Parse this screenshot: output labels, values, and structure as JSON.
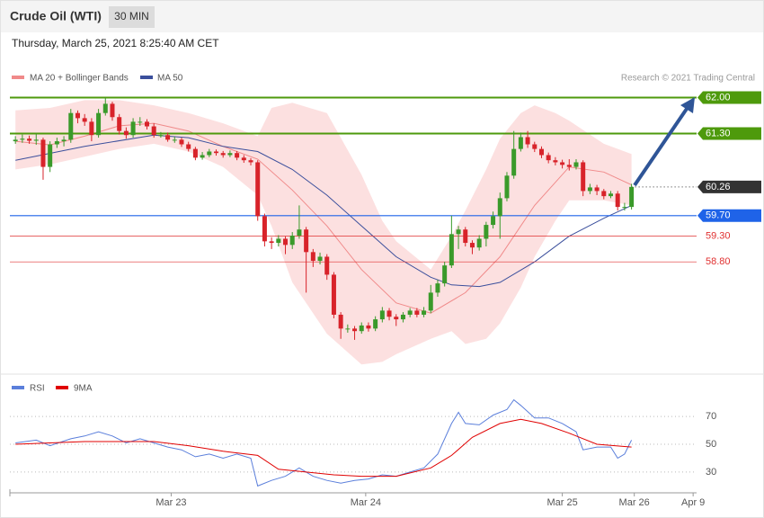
{
  "header": {
    "title": "Crude Oil (WTI)",
    "interval": "30 MIN",
    "timestamp": "Thursday, March 25, 2021 8:25:40 AM CET",
    "credit": "Research © 2021 Trading Central"
  },
  "chart_data": [
    {
      "type": "candlestick",
      "up_color": "#3a9a2a",
      "down_color": "#d8232a",
      "xlim": [
        -0.8,
        98.4
      ],
      "ylim": [
        56.7,
        62.15
      ],
      "open": [
        61.15,
        61.18,
        61.2,
        61.16,
        61.18,
        60.65,
        61.09,
        61.15,
        61.18,
        61.7,
        61.6,
        61.53,
        61.27,
        61.7,
        61.88,
        61.62,
        61.35,
        61.27,
        61.53,
        61.53,
        61.44,
        61.27,
        61.27,
        61.18,
        61.18,
        61.09,
        61.0,
        60.83,
        60.88,
        60.95,
        60.92,
        60.88,
        60.92,
        60.83,
        60.78,
        60.74,
        59.69,
        59.2,
        59.17,
        59.25,
        59.13,
        59.31,
        59.43,
        58.99,
        58.82,
        58.9,
        58.55,
        57.77,
        57.5,
        57.5,
        57.45,
        57.56,
        57.5,
        57.68,
        57.85,
        57.73,
        57.68,
        57.77,
        57.85,
        57.77,
        57.85,
        58.2,
        58.38,
        58.73,
        59.34,
        59.43,
        59.17,
        59.08,
        59.25,
        59.52,
        59.69,
        60.04,
        60.48,
        61.0,
        61.23,
        61.09,
        61.0,
        60.88,
        60.78,
        60.74,
        60.69,
        60.65,
        60.74,
        60.18,
        60.25,
        60.18,
        60.08,
        60.13,
        59.87,
        59.87
      ],
      "high": [
        61.25,
        61.28,
        61.26,
        61.3,
        61.22,
        61.15,
        61.22,
        61.25,
        61.78,
        61.75,
        61.68,
        61.6,
        61.78,
        62.0,
        61.92,
        61.68,
        61.42,
        61.6,
        61.62,
        61.58,
        61.5,
        61.33,
        61.32,
        61.24,
        61.22,
        61.14,
        61.04,
        60.94,
        61.0,
        60.99,
        60.96,
        60.97,
        60.96,
        60.88,
        60.82,
        60.78,
        59.74,
        59.28,
        59.32,
        59.3,
        59.38,
        59.9,
        59.48,
        59.05,
        58.98,
        58.95,
        58.6,
        57.82,
        57.58,
        57.55,
        57.62,
        57.62,
        57.74,
        57.92,
        57.9,
        57.78,
        57.82,
        57.9,
        57.9,
        57.92,
        58.35,
        58.45,
        58.8,
        59.7,
        59.5,
        59.48,
        59.22,
        59.32,
        59.58,
        59.78,
        60.15,
        60.55,
        61.35,
        61.32,
        61.35,
        61.14,
        61.05,
        60.93,
        60.84,
        60.79,
        60.8,
        60.8,
        60.78,
        60.32,
        60.3,
        60.22,
        60.18,
        60.18,
        59.95,
        60.32
      ],
      "low": [
        61.1,
        61.12,
        61.1,
        61.08,
        60.4,
        60.55,
        61.02,
        61.05,
        61.12,
        61.5,
        61.45,
        61.15,
        61.22,
        61.65,
        61.55,
        61.28,
        61.2,
        61.22,
        61.45,
        61.38,
        61.22,
        61.22,
        61.14,
        61.12,
        61.04,
        60.95,
        60.78,
        60.79,
        60.84,
        60.87,
        60.83,
        60.84,
        60.78,
        60.73,
        60.68,
        59.6,
        59.1,
        59.05,
        59.1,
        58.95,
        59.05,
        59.25,
        58.2,
        58.7,
        58.75,
        58.45,
        57.7,
        57.3,
        57.42,
        57.28,
        57.4,
        57.44,
        57.45,
        57.62,
        57.66,
        57.55,
        57.62,
        57.72,
        57.72,
        57.72,
        57.8,
        58.12,
        58.32,
        58.68,
        59.05,
        59.1,
        58.95,
        59.02,
        59.1,
        59.45,
        59.25,
        59.98,
        60.42,
        60.95,
        61.02,
        60.94,
        60.82,
        60.72,
        60.68,
        60.62,
        60.58,
        60.6,
        60.08,
        60.12,
        60.1,
        60.02,
        60.04,
        59.8,
        59.8,
        59.82
      ],
      "close": [
        61.18,
        61.2,
        61.16,
        61.18,
        60.65,
        61.09,
        61.15,
        61.18,
        61.7,
        61.6,
        61.53,
        61.27,
        61.7,
        61.88,
        61.62,
        61.35,
        61.27,
        61.53,
        61.53,
        61.44,
        61.27,
        61.27,
        61.18,
        61.18,
        61.09,
        61.0,
        60.83,
        60.88,
        60.95,
        60.92,
        60.88,
        60.92,
        60.83,
        60.78,
        60.74,
        59.69,
        59.2,
        59.17,
        59.25,
        59.13,
        59.31,
        59.43,
        58.99,
        58.82,
        58.9,
        58.55,
        57.77,
        57.5,
        57.5,
        57.45,
        57.56,
        57.5,
        57.68,
        57.85,
        57.73,
        57.68,
        57.77,
        57.85,
        57.77,
        57.85,
        58.2,
        58.38,
        58.73,
        59.34,
        59.43,
        59.17,
        59.08,
        59.25,
        59.52,
        59.69,
        60.04,
        60.48,
        61.0,
        61.23,
        61.09,
        61.0,
        60.88,
        60.78,
        60.74,
        60.69,
        60.65,
        60.74,
        60.18,
        60.25,
        60.18,
        60.08,
        60.13,
        59.87,
        59.87,
        60.26
      ],
      "band": {
        "name": "MA 20 + Bollinger Bands",
        "color": "#fbdada",
        "x": [
          0,
          5,
          10,
          15,
          20,
          25,
          30,
          35,
          37,
          40,
          45,
          50,
          53,
          55,
          60,
          63,
          65,
          68,
          70,
          73,
          75,
          78,
          80,
          85,
          89
        ],
        "upper": [
          61.75,
          61.8,
          61.95,
          61.95,
          61.85,
          61.7,
          61.5,
          61.25,
          61.8,
          61.9,
          61.7,
          60.5,
          59.6,
          59.2,
          58.65,
          59.3,
          59.8,
          60.6,
          61.2,
          61.7,
          61.85,
          61.7,
          61.55,
          61.1,
          60.9
        ],
        "lower": [
          60.6,
          60.7,
          60.85,
          61.0,
          61.1,
          60.95,
          60.65,
          60.1,
          59.5,
          58.4,
          57.4,
          56.8,
          56.85,
          57.0,
          57.3,
          57.45,
          57.2,
          57.3,
          57.6,
          58.3,
          58.9,
          59.6,
          60.0,
          60.0,
          59.9
        ]
      },
      "series": [
        {
          "name": "MA 20 + Bollinger Bands",
          "color": "#f08a8a",
          "x": [
            0,
            5,
            10,
            15,
            20,
            25,
            30,
            35,
            40,
            45,
            50,
            55,
            60,
            65,
            70,
            75,
            80,
            85,
            89
          ],
          "values": [
            61.15,
            61.08,
            61.25,
            61.45,
            61.5,
            61.35,
            61.05,
            60.8,
            60.2,
            59.5,
            58.65,
            58.0,
            57.8,
            58.2,
            58.9,
            59.9,
            60.65,
            60.55,
            60.3
          ]
        },
        {
          "name": "MA 50",
          "color": "#3b4f9c",
          "x": [
            0,
            10,
            20,
            25,
            30,
            35,
            40,
            45,
            50,
            55,
            60,
            63,
            67,
            70,
            75,
            80,
            85,
            89
          ],
          "values": [
            60.78,
            61.05,
            61.27,
            61.22,
            61.05,
            60.95,
            60.6,
            60.1,
            59.5,
            58.9,
            58.5,
            58.35,
            58.32,
            58.4,
            58.8,
            59.3,
            59.65,
            59.9
          ]
        }
      ],
      "levels": [
        {
          "value": 62,
          "label": "62.00",
          "color": "#4e9a0c",
          "style": "box"
        },
        {
          "value": 61.3,
          "label": "61.30",
          "color": "#4e9a0c",
          "style": "box"
        },
        {
          "value": 60.26,
          "label": "60.26",
          "color": "#333333",
          "style": "current"
        },
        {
          "value": 59.7,
          "label": "59.70",
          "color": "#1f63e8",
          "style": "box"
        },
        {
          "value": 59.3,
          "label": "59.30",
          "color": "#e03030",
          "style": "text"
        },
        {
          "value": 58.8,
          "label": "58.80",
          "color": "#e03030",
          "style": "text"
        }
      ]
    },
    {
      "type": "line",
      "xlim": [
        -0.8,
        98.4
      ],
      "ylim": [
        17,
        85
      ],
      "yticks": [
        30,
        50,
        70
      ],
      "grid": true,
      "xticks": [
        {
          "value": 22.5,
          "label": "Mar 23"
        },
        {
          "value": 50.6,
          "label": "Mar 24"
        },
        {
          "value": 79,
          "label": "Mar 25"
        },
        {
          "value": 89.4,
          "label": "Mar 26"
        },
        {
          "value": 97.9,
          "label": "Apr 9"
        }
      ],
      "series": [
        {
          "name": "RSI",
          "color": "#5b7fdb",
          "x": [
            0,
            3,
            5,
            8,
            10,
            12,
            14,
            16,
            18,
            20,
            22,
            24,
            26,
            28,
            30,
            32,
            34,
            35,
            37,
            39,
            41,
            43,
            45,
            47,
            49,
            51,
            53,
            55,
            57,
            59,
            61,
            63,
            64,
            65,
            67,
            69,
            71,
            72,
            73,
            75,
            77,
            79,
            81,
            82,
            84,
            86,
            87,
            88,
            89
          ],
          "values": [
            51,
            53,
            49,
            54,
            56,
            59,
            56,
            51,
            54,
            51,
            48,
            46,
            41,
            43,
            40,
            43,
            40,
            20,
            24,
            27,
            33,
            27,
            24,
            22,
            24,
            25,
            28,
            27,
            30,
            33,
            43,
            65,
            73,
            65,
            64,
            71,
            75,
            82,
            78,
            69,
            69,
            65,
            59,
            46,
            48,
            48,
            40,
            43,
            53
          ]
        },
        {
          "name": "9MA",
          "color": "#e00000",
          "x": [
            0,
            10,
            20,
            25,
            30,
            35,
            38,
            42,
            46,
            50,
            55,
            60,
            63,
            66,
            70,
            73,
            76,
            80,
            84,
            89
          ],
          "values": [
            50,
            52,
            52,
            49,
            45,
            42,
            32,
            30,
            28,
            27,
            27,
            33,
            42,
            55,
            65,
            68,
            65,
            58,
            50,
            48
          ]
        }
      ]
    }
  ]
}
